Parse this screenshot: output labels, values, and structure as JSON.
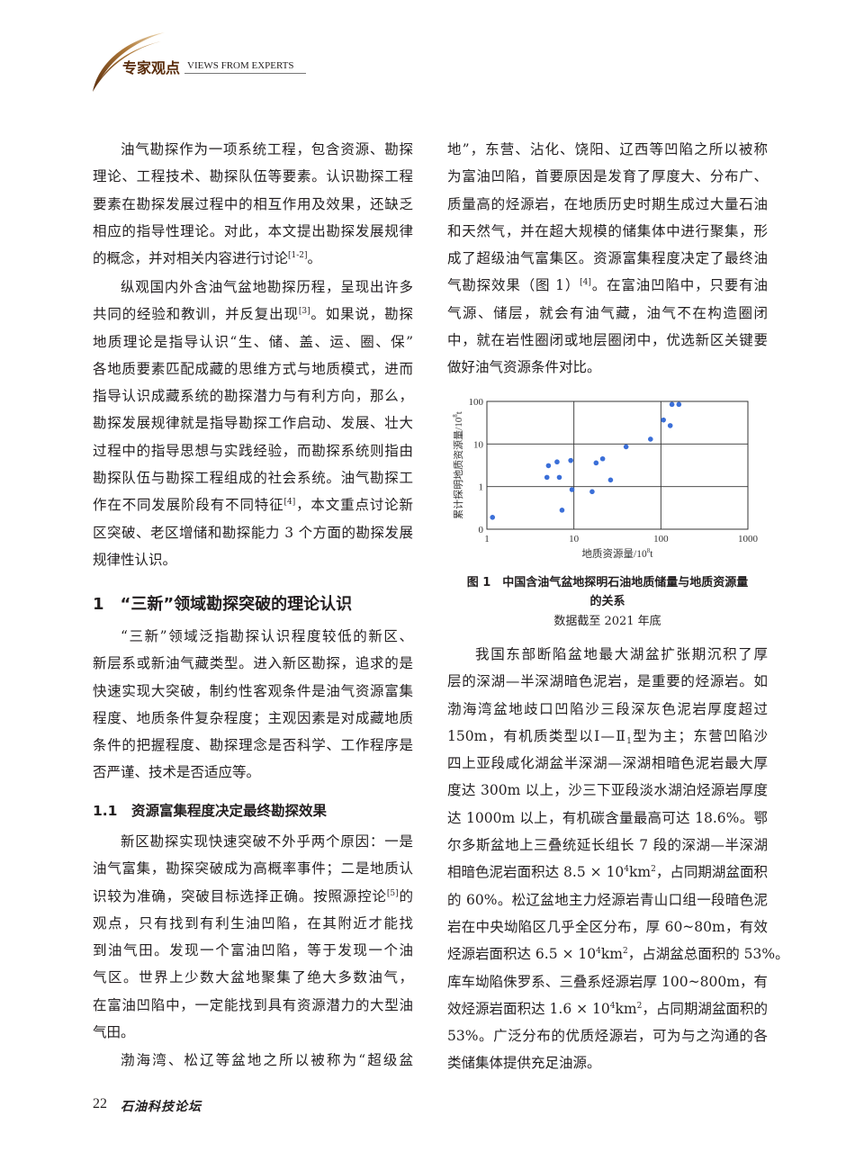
{
  "header": {
    "section_cn": "专家观点",
    "section_en": "VIEWS FROM EXPERTS",
    "accent_color": "#5a2d0c"
  },
  "left_column": {
    "p1": [
      "油气勘探作为一项系统工程，包含资源、勘探",
      "理论、工程技术、勘探队伍等要素。认识勘探工程",
      "要素在勘探发展过程中的相互作用及效果，还缺乏",
      "相应的指导性理论。对此，本文提出勘探发展规律",
      "的概念，并对相关内容进行讨论^{[1-2]}。"
    ],
    "p2": [
      "纵观国内外含油气盆地勘探历程，呈现出许多",
      "共同的经验和教训，并反复出现^{[3]}。如果说，勘探",
      "地质理论是指导认识“生、储、盖、运、圈、保”",
      "各地质要素匹配成藏的思维方式与地质模式，进而",
      "指导认识成藏系统的勘探潜力与有利方向，那么，",
      "勘探发展规律就是指导勘探工作启动、发展、壮大",
      "过程中的指导思想与实践经验，而勘探系统则指由",
      "勘探队伍与勘探工程组成的社会系统。油气勘探工",
      "作在不同发展阶段有不同特征^{[4]}，本文重点讨论新",
      "区突破、老区增储和勘探能力 3 个方面的勘探发展",
      "规律性认识。"
    ],
    "heading1": "1　“三新”领域勘探突破的理论认识",
    "p3": [
      "“三新”领域泛指勘探认识程度较低的新区、",
      "新层系或新油气藏类型。进入新区勘探，追求的是",
      "快速实现大突破，制约性客观条件是油气资源富集",
      "程度、地质条件复杂程度；主观因素是对成藏地质",
      "条件的把握程度、勘探理念是否科学、工作程序是",
      "否严谨、技术是否适应等。"
    ],
    "heading11": "1.1　资源富集程度决定最终勘探效果",
    "p4": [
      "新区勘探实现快速突破不外乎两个原因：一是",
      "油气富集，勘探突破成为高概率事件；二是地质认",
      "识较为准确，突破目标选择正确。按照源控论^{[5]}的",
      "观点，只有找到有利生油凹陷，在其附近才能找",
      "到油气田。发现一个富油凹陷，等于发现一个油",
      "气区。世界上少数大盆地聚集了绝大多数油气，",
      "在富油凹陷中，一定能找到具有资源潜力的大型油",
      "气田。"
    ],
    "p5": [
      "渤海湾、松辽等盆地之所以被称为“超级盆"
    ]
  },
  "right_column": {
    "p1": [
      "地”，东营、沾化、饶阳、辽西等凹陷之所以被称",
      "为富油凹陷，首要原因是发育了厚度大、分布广、",
      "质量高的烃源岩，在地质历史时期生成过大量石油",
      "和天然气，并在超大规模的储集体中进行聚集，形",
      "成了超级油气富集区。资源富集程度决定了最终油",
      "气勘探效果（图 1）^{[4]}。在富油凹陷中，只要有油",
      "气源、储层，就会有油气藏，油气不在构造圈闭",
      "中，就在岩性圈闭或地层圈闭中，优选新区关键要",
      "做好油气资源条件对比。"
    ],
    "p2": [
      "我国东部断陷盆地最大湖盆扩张期沉积了厚",
      "层的深湖—半深湖暗色泥岩，是重要的烃源岩。如",
      "渤海湾盆地歧口凹陷沙三段深灰色泥岩厚度超过",
      "150m，有机质类型以Ⅰ—Ⅱ_{1}型为主；东营凹陷沙",
      "四上亚段咸化湖盆半深湖—深湖相暗色泥岩最大厚",
      "度达 300m 以上，沙三下亚段淡水湖泊烃源岩厚度",
      "达 1000m 以上，有机碳含量最高可达 18.6%。鄂",
      "尔多斯盆地上三叠统延长组长 7 段的深湖—半深湖",
      "相暗色泥岩面积达 8.5 × 10^{4}km^{2}，占同期湖盆面积",
      "的 60%。松辽盆地主力烃源岩青山口组一段暗色泥",
      "岩在中央坳陷区几乎全区分布，厚 60~80m，有效",
      "烃源岩面积达 6.5 × 10^{4}km^{2}，占湖盆总面积的 53%。",
      "库车坳陷侏罗系、三叠系烃源岩厚 100~800m，有",
      "效烃源岩面积达 1.6 × 10^{4}km^{2}，占同期湖盆面积的",
      "53%。广泛分布的优质烃源岩，可为与之沟通的各",
      "类储集体提供充足油源。"
    ]
  },
  "figure": {
    "caption_label": "图 1",
    "caption_title_1": "中国含油气盆地探明石油地质储量与地质资源量",
    "caption_title_2": "的关系",
    "caption_note": "数据截至 2021 年底"
  },
  "chart_data": {
    "type": "scatter",
    "xlabel": "地质资源量/10^8t",
    "ylabel": "累计探明地质资源量/10^8t",
    "x_scale": "log",
    "y_scale": "log",
    "xlim": [
      1,
      1000
    ],
    "ylim": [
      0.1,
      100
    ],
    "x_ticks": [
      {
        "value": 1,
        "label": "1"
      },
      {
        "value": 10,
        "label": "10"
      },
      {
        "value": 100,
        "label": "100"
      },
      {
        "value": 1000,
        "label": "1000"
      }
    ],
    "y_ticks": [
      {
        "value": 0.1,
        "label": "0"
      },
      {
        "value": 1,
        "label": "1"
      },
      {
        "value": 10,
        "label": "10"
      },
      {
        "value": 100,
        "label": "100"
      }
    ],
    "grid": true,
    "marker_color": "#3b6fd8",
    "points": [
      [
        1.16,
        0.19
      ],
      [
        4.9,
        1.65
      ],
      [
        5.1,
        3.1
      ],
      [
        6.4,
        3.8
      ],
      [
        6.8,
        1.65
      ],
      [
        7.3,
        0.28
      ],
      [
        9.2,
        4.1
      ],
      [
        9.5,
        0.85
      ],
      [
        16.2,
        0.76
      ],
      [
        18,
        3.6
      ],
      [
        21.4,
        4.5
      ],
      [
        26.4,
        1.43
      ],
      [
        39.8,
        8.6
      ],
      [
        76,
        13
      ],
      [
        107,
        36.6
      ],
      [
        128,
        27
      ],
      [
        134,
        85
      ],
      [
        161,
        85
      ]
    ]
  },
  "footer": {
    "page_number": "22",
    "journal": "石油科技论坛"
  }
}
